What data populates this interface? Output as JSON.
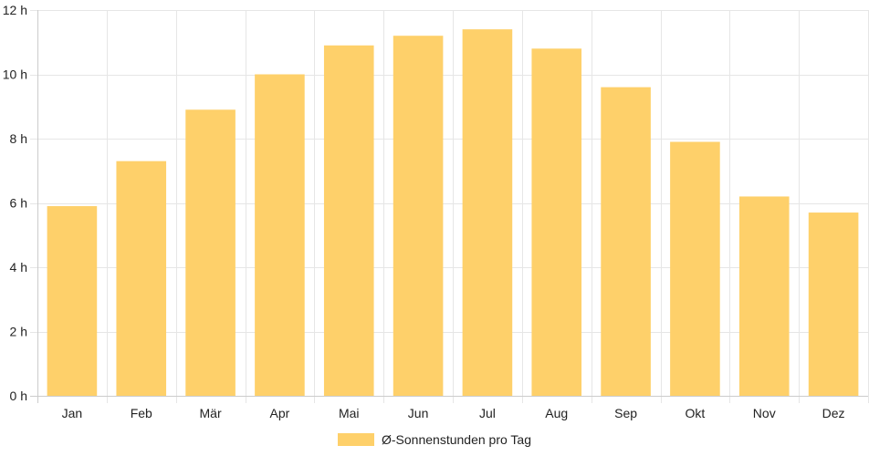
{
  "chart_data": {
    "type": "bar",
    "categories": [
      "Jan",
      "Feb",
      "Mär",
      "Apr",
      "Mai",
      "Jun",
      "Jul",
      "Aug",
      "Sep",
      "Okt",
      "Nov",
      "Dez"
    ],
    "series": [
      {
        "name": "Ø-Sonnenstunden pro Tag",
        "values": [
          5.9,
          7.3,
          8.9,
          10.0,
          10.9,
          11.2,
          11.4,
          10.8,
          9.6,
          7.9,
          6.2,
          5.7
        ],
        "color": "#fed06a"
      }
    ],
    "ylim": [
      0,
      12
    ],
    "yticks": [
      0,
      2,
      4,
      6,
      8,
      10,
      12
    ],
    "ytick_labels": [
      "0 h",
      "2 h",
      "4 h",
      "6 h",
      "8 h",
      "10 h",
      "12 h"
    ],
    "grid": true,
    "grid_color": "#e6e6e6",
    "axis_color": "#cccccc",
    "legend_position": "bottom"
  }
}
